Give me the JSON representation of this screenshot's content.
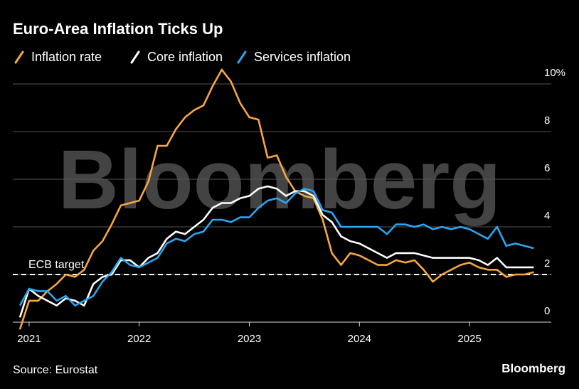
{
  "chart_data": {
    "type": "line",
    "title": "Euro-Area Inflation Ticks Up",
    "source": "Source: Eurostat",
    "brand": "Bloomberg",
    "watermark": "Bloomberg",
    "categories": [
      null,
      "2021",
      null,
      null,
      null,
      null,
      null,
      null,
      null,
      null,
      null,
      null,
      null,
      "2022",
      null,
      null,
      null,
      null,
      null,
      null,
      null,
      null,
      null,
      null,
      null,
      "2023",
      null,
      null,
      null,
      null,
      null,
      null,
      null,
      null,
      null,
      null,
      null,
      "2024",
      null,
      null,
      null,
      null,
      null,
      null,
      null,
      null,
      null,
      null,
      null,
      "2025",
      null,
      null,
      null,
      null,
      null,
      null,
      null
    ],
    "series": [
      {
        "name": "Inflation rate",
        "color": "#f5a742",
        "values": [
          -0.3,
          0.9,
          0.9,
          1.3,
          1.6,
          2.0,
          1.9,
          2.2,
          3.0,
          3.4,
          4.1,
          4.9,
          5.0,
          5.1,
          5.9,
          7.4,
          7.4,
          8.1,
          8.6,
          8.9,
          9.1,
          9.9,
          10.6,
          10.1,
          9.2,
          8.6,
          8.5,
          6.9,
          7.0,
          6.1,
          5.5,
          5.3,
          5.2,
          4.3,
          2.9,
          2.4,
          2.9,
          2.8,
          2.6,
          2.4,
          2.4,
          2.6,
          2.5,
          2.6,
          2.2,
          1.7,
          2.0,
          2.2,
          2.4,
          2.5,
          2.3,
          2.2,
          2.2,
          1.9,
          2.0,
          2.0,
          2.1
        ]
      },
      {
        "name": "Core inflation",
        "color": "#ffffff",
        "values": [
          0.2,
          1.4,
          1.1,
          0.9,
          0.7,
          1.0,
          0.9,
          0.7,
          1.6,
          1.9,
          2.0,
          2.6,
          2.6,
          2.3,
          2.7,
          2.9,
          3.5,
          3.8,
          3.7,
          4.0,
          4.3,
          4.8,
          5.0,
          5.0,
          5.2,
          5.3,
          5.6,
          5.7,
          5.6,
          5.3,
          5.5,
          5.5,
          5.3,
          4.5,
          4.2,
          3.6,
          3.4,
          3.3,
          3.1,
          2.9,
          2.7,
          2.9,
          2.9,
          2.9,
          2.8,
          2.7,
          2.7,
          2.7,
          2.7,
          2.7,
          2.6,
          2.4,
          2.7,
          2.3,
          2.3,
          2.3,
          2.3
        ]
      },
      {
        "name": "Services inflation",
        "color": "#2ba6f0",
        "values": [
          0.7,
          1.4,
          1.3,
          1.3,
          0.9,
          1.1,
          0.7,
          0.9,
          1.1,
          1.7,
          2.1,
          2.7,
          2.4,
          2.3,
          2.5,
          2.7,
          3.3,
          3.5,
          3.4,
          3.7,
          3.8,
          4.3,
          4.3,
          4.2,
          4.4,
          4.4,
          4.8,
          5.1,
          5.2,
          5.0,
          5.4,
          5.6,
          5.5,
          4.7,
          4.6,
          4.0,
          4.0,
          4.0,
          4.0,
          4.0,
          3.7,
          4.1,
          4.1,
          4.0,
          4.1,
          3.9,
          4.0,
          3.9,
          4.0,
          3.9,
          3.7,
          3.5,
          4.0,
          3.2,
          3.3,
          3.2,
          3.1
        ]
      }
    ],
    "ylim": [
      -0.4,
      10.5
    ],
    "yticks": [
      0,
      2,
      4,
      6,
      {
        "value": 8,
        "label": "8"
      },
      {
        "value": 10,
        "label": "10%"
      }
    ],
    "grid": true,
    "ecb_target": {
      "label": "ECB target",
      "value": 2
    }
  }
}
